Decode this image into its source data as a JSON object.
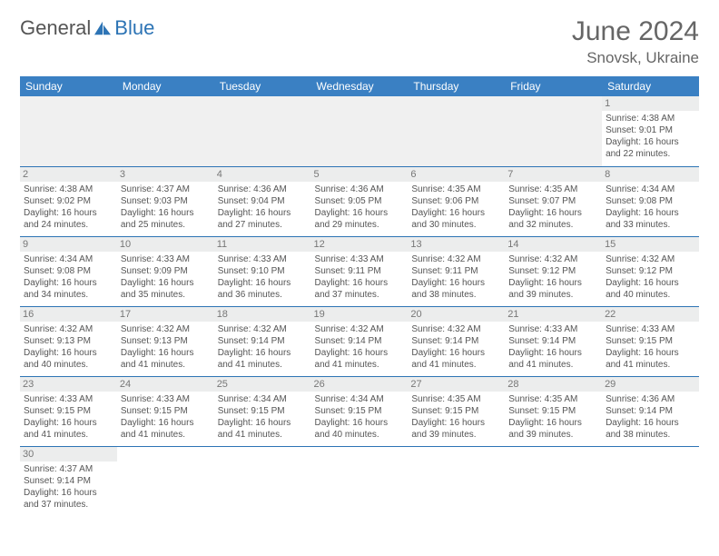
{
  "brand": {
    "part1": "General",
    "part2": "Blue"
  },
  "title": "June 2024",
  "location": "Snovsk, Ukraine",
  "colors": {
    "header_bg": "#3a80c3",
    "border": "#2d74b5",
    "daynum_bg": "#eceded",
    "blank_bg": "#f0f0f0",
    "text": "#555555"
  },
  "weekdays": [
    "Sunday",
    "Monday",
    "Tuesday",
    "Wednesday",
    "Thursday",
    "Friday",
    "Saturday"
  ],
  "weeks": [
    [
      null,
      null,
      null,
      null,
      null,
      null,
      {
        "n": "1",
        "sr": "Sunrise: 4:38 AM",
        "ss": "Sunset: 9:01 PM",
        "d1": "Daylight: 16 hours",
        "d2": "and 22 minutes."
      }
    ],
    [
      {
        "n": "2",
        "sr": "Sunrise: 4:38 AM",
        "ss": "Sunset: 9:02 PM",
        "d1": "Daylight: 16 hours",
        "d2": "and 24 minutes."
      },
      {
        "n": "3",
        "sr": "Sunrise: 4:37 AM",
        "ss": "Sunset: 9:03 PM",
        "d1": "Daylight: 16 hours",
        "d2": "and 25 minutes."
      },
      {
        "n": "4",
        "sr": "Sunrise: 4:36 AM",
        "ss": "Sunset: 9:04 PM",
        "d1": "Daylight: 16 hours",
        "d2": "and 27 minutes."
      },
      {
        "n": "5",
        "sr": "Sunrise: 4:36 AM",
        "ss": "Sunset: 9:05 PM",
        "d1": "Daylight: 16 hours",
        "d2": "and 29 minutes."
      },
      {
        "n": "6",
        "sr": "Sunrise: 4:35 AM",
        "ss": "Sunset: 9:06 PM",
        "d1": "Daylight: 16 hours",
        "d2": "and 30 minutes."
      },
      {
        "n": "7",
        "sr": "Sunrise: 4:35 AM",
        "ss": "Sunset: 9:07 PM",
        "d1": "Daylight: 16 hours",
        "d2": "and 32 minutes."
      },
      {
        "n": "8",
        "sr": "Sunrise: 4:34 AM",
        "ss": "Sunset: 9:08 PM",
        "d1": "Daylight: 16 hours",
        "d2": "and 33 minutes."
      }
    ],
    [
      {
        "n": "9",
        "sr": "Sunrise: 4:34 AM",
        "ss": "Sunset: 9:08 PM",
        "d1": "Daylight: 16 hours",
        "d2": "and 34 minutes."
      },
      {
        "n": "10",
        "sr": "Sunrise: 4:33 AM",
        "ss": "Sunset: 9:09 PM",
        "d1": "Daylight: 16 hours",
        "d2": "and 35 minutes."
      },
      {
        "n": "11",
        "sr": "Sunrise: 4:33 AM",
        "ss": "Sunset: 9:10 PM",
        "d1": "Daylight: 16 hours",
        "d2": "and 36 minutes."
      },
      {
        "n": "12",
        "sr": "Sunrise: 4:33 AM",
        "ss": "Sunset: 9:11 PM",
        "d1": "Daylight: 16 hours",
        "d2": "and 37 minutes."
      },
      {
        "n": "13",
        "sr": "Sunrise: 4:32 AM",
        "ss": "Sunset: 9:11 PM",
        "d1": "Daylight: 16 hours",
        "d2": "and 38 minutes."
      },
      {
        "n": "14",
        "sr": "Sunrise: 4:32 AM",
        "ss": "Sunset: 9:12 PM",
        "d1": "Daylight: 16 hours",
        "d2": "and 39 minutes."
      },
      {
        "n": "15",
        "sr": "Sunrise: 4:32 AM",
        "ss": "Sunset: 9:12 PM",
        "d1": "Daylight: 16 hours",
        "d2": "and 40 minutes."
      }
    ],
    [
      {
        "n": "16",
        "sr": "Sunrise: 4:32 AM",
        "ss": "Sunset: 9:13 PM",
        "d1": "Daylight: 16 hours",
        "d2": "and 40 minutes."
      },
      {
        "n": "17",
        "sr": "Sunrise: 4:32 AM",
        "ss": "Sunset: 9:13 PM",
        "d1": "Daylight: 16 hours",
        "d2": "and 41 minutes."
      },
      {
        "n": "18",
        "sr": "Sunrise: 4:32 AM",
        "ss": "Sunset: 9:14 PM",
        "d1": "Daylight: 16 hours",
        "d2": "and 41 minutes."
      },
      {
        "n": "19",
        "sr": "Sunrise: 4:32 AM",
        "ss": "Sunset: 9:14 PM",
        "d1": "Daylight: 16 hours",
        "d2": "and 41 minutes."
      },
      {
        "n": "20",
        "sr": "Sunrise: 4:32 AM",
        "ss": "Sunset: 9:14 PM",
        "d1": "Daylight: 16 hours",
        "d2": "and 41 minutes."
      },
      {
        "n": "21",
        "sr": "Sunrise: 4:33 AM",
        "ss": "Sunset: 9:14 PM",
        "d1": "Daylight: 16 hours",
        "d2": "and 41 minutes."
      },
      {
        "n": "22",
        "sr": "Sunrise: 4:33 AM",
        "ss": "Sunset: 9:15 PM",
        "d1": "Daylight: 16 hours",
        "d2": "and 41 minutes."
      }
    ],
    [
      {
        "n": "23",
        "sr": "Sunrise: 4:33 AM",
        "ss": "Sunset: 9:15 PM",
        "d1": "Daylight: 16 hours",
        "d2": "and 41 minutes."
      },
      {
        "n": "24",
        "sr": "Sunrise: 4:33 AM",
        "ss": "Sunset: 9:15 PM",
        "d1": "Daylight: 16 hours",
        "d2": "and 41 minutes."
      },
      {
        "n": "25",
        "sr": "Sunrise: 4:34 AM",
        "ss": "Sunset: 9:15 PM",
        "d1": "Daylight: 16 hours",
        "d2": "and 41 minutes."
      },
      {
        "n": "26",
        "sr": "Sunrise: 4:34 AM",
        "ss": "Sunset: 9:15 PM",
        "d1": "Daylight: 16 hours",
        "d2": "and 40 minutes."
      },
      {
        "n": "27",
        "sr": "Sunrise: 4:35 AM",
        "ss": "Sunset: 9:15 PM",
        "d1": "Daylight: 16 hours",
        "d2": "and 39 minutes."
      },
      {
        "n": "28",
        "sr": "Sunrise: 4:35 AM",
        "ss": "Sunset: 9:15 PM",
        "d1": "Daylight: 16 hours",
        "d2": "and 39 minutes."
      },
      {
        "n": "29",
        "sr": "Sunrise: 4:36 AM",
        "ss": "Sunset: 9:14 PM",
        "d1": "Daylight: 16 hours",
        "d2": "and 38 minutes."
      }
    ],
    [
      {
        "n": "30",
        "sr": "Sunrise: 4:37 AM",
        "ss": "Sunset: 9:14 PM",
        "d1": "Daylight: 16 hours",
        "d2": "and 37 minutes."
      },
      null,
      null,
      null,
      null,
      null,
      null
    ]
  ]
}
